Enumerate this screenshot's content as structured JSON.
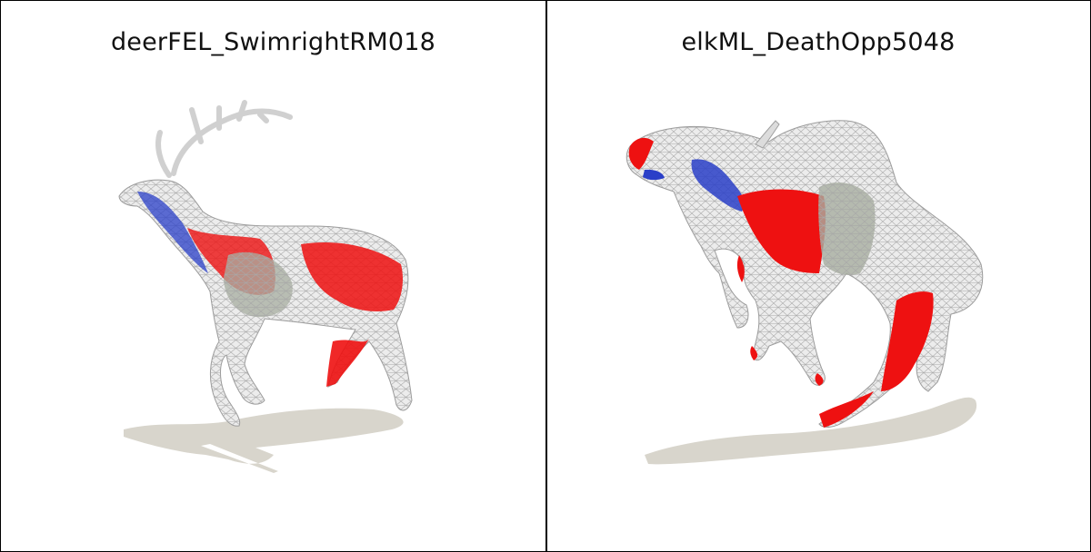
{
  "panels": [
    {
      "title": "deerFEL_SwimrightRM018",
      "subject": "deer-mesh-render"
    },
    {
      "title": "elkML_DeathOpp5048",
      "subject": "elk-mesh-render"
    }
  ],
  "colors": {
    "mesh_base": "#ececec",
    "wire": "#b9b9b9",
    "red": "#ee1111",
    "blue": "#2a3fc8",
    "gray_patch": "#a7aea0",
    "shadow": "#d8d5cc"
  }
}
